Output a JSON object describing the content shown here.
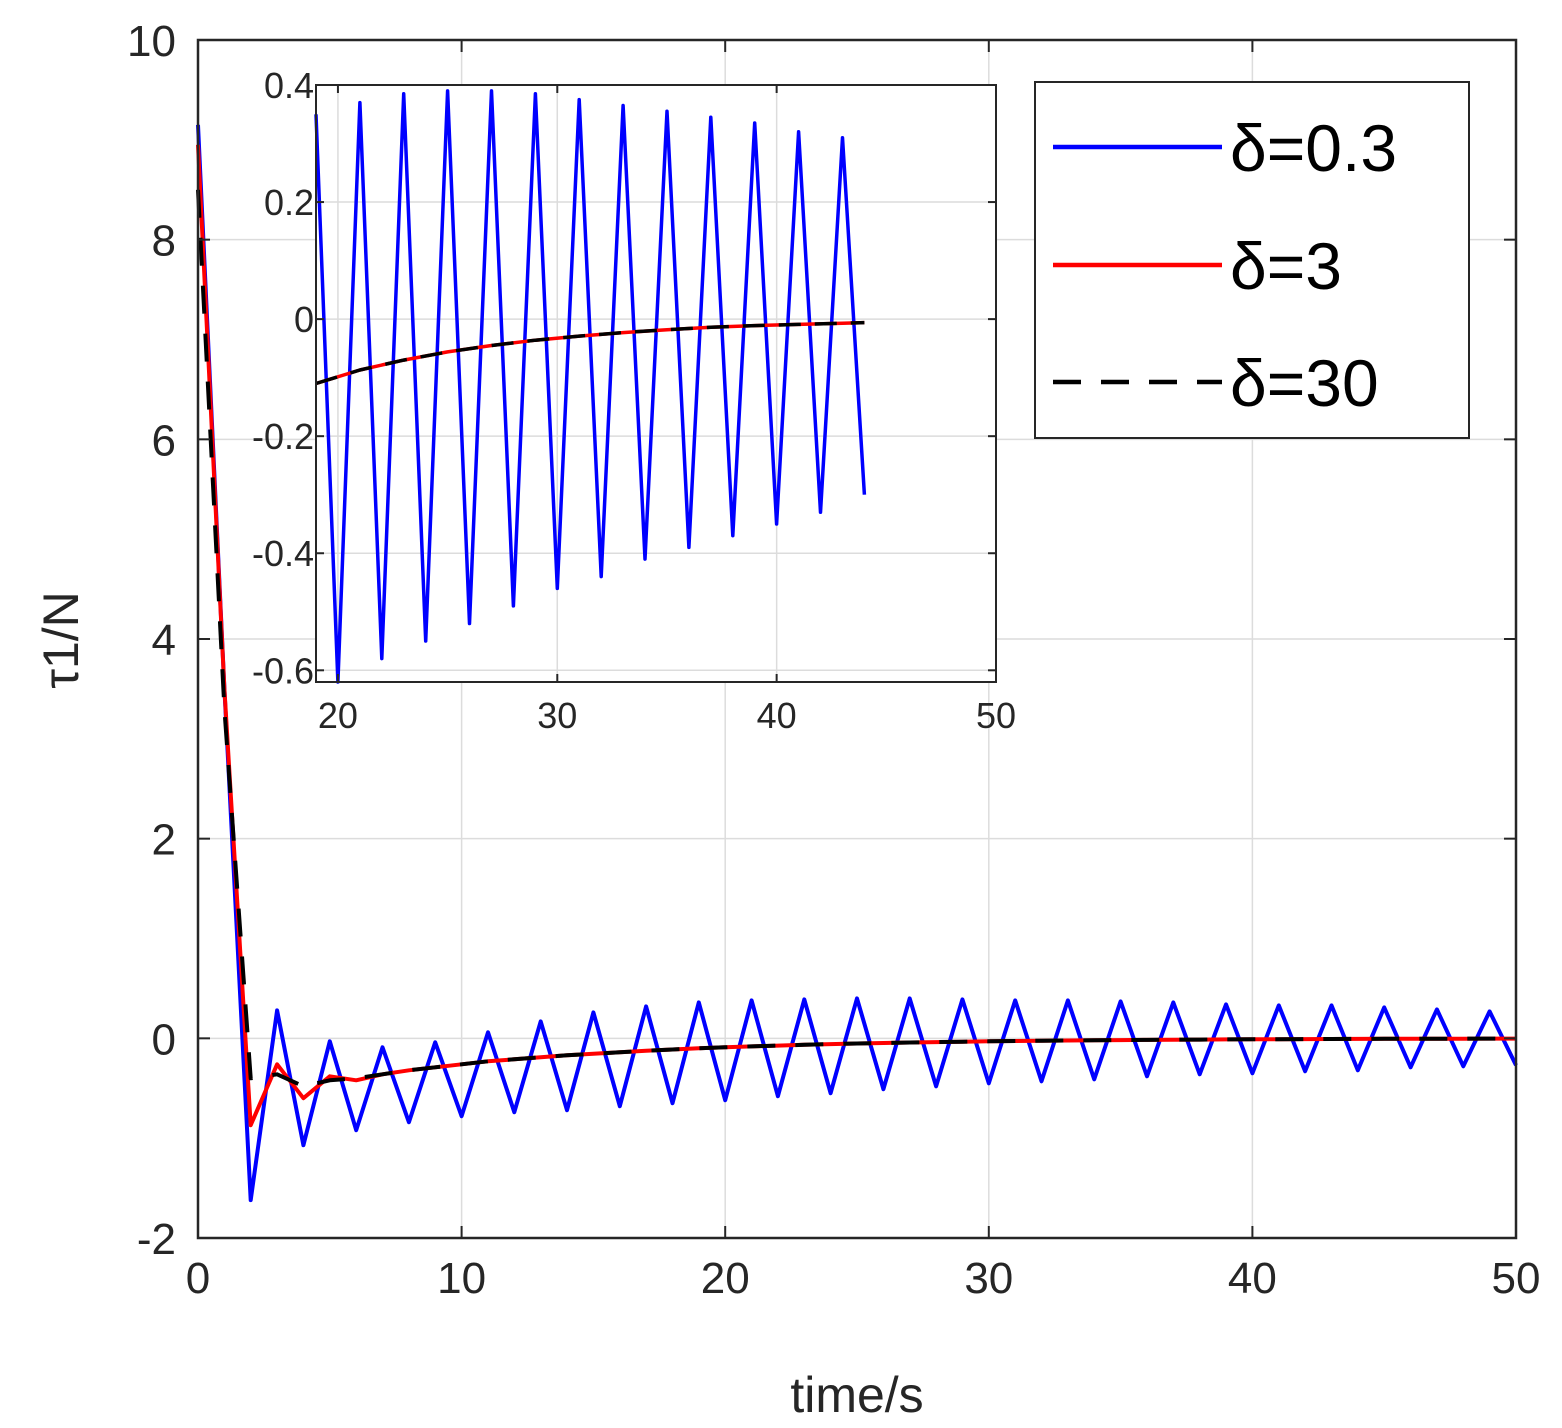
{
  "chart_data": [
    {
      "id": "main",
      "type": "line",
      "title": "",
      "xlabel": "time/s",
      "ylabel": "τ1/N",
      "xlim": [
        0,
        50
      ],
      "ylim": [
        -2,
        10
      ],
      "xticks": [
        0,
        10,
        20,
        30,
        40,
        50
      ],
      "yticks": [
        -2,
        0,
        2,
        4,
        6,
        8,
        10
      ],
      "xtick_labels": [
        "0",
        "10",
        "20",
        "30",
        "40",
        "50"
      ],
      "ytick_labels": [
        "-2",
        "0",
        "2",
        "4",
        "6",
        "8",
        "10"
      ],
      "grid": true,
      "legend_position": "top-right",
      "series": [
        {
          "name": "δ=0.3",
          "color": "#0000ff",
          "style": "solid",
          "x": [
            0,
            1,
            2,
            3,
            4,
            5,
            6,
            7,
            8,
            9,
            10,
            11,
            12,
            13,
            14,
            15,
            16,
            17,
            18,
            19,
            20,
            21,
            22,
            23,
            24,
            25,
            26,
            27,
            28,
            29,
            30,
            31,
            32,
            33,
            34,
            35,
            36,
            37,
            38,
            39,
            40,
            41,
            42,
            43,
            44,
            45,
            46,
            47,
            48,
            49,
            50
          ],
          "y": [
            9.15,
            3.5,
            -1.62,
            0.28,
            -1.07,
            -0.03,
            -0.92,
            -0.09,
            -0.84,
            -0.04,
            -0.78,
            0.06,
            -0.74,
            0.17,
            -0.72,
            0.26,
            -0.68,
            0.32,
            -0.65,
            0.36,
            -0.62,
            0.38,
            -0.58,
            0.39,
            -0.55,
            0.4,
            -0.51,
            0.4,
            -0.48,
            0.39,
            -0.45,
            0.38,
            -0.43,
            0.38,
            -0.41,
            0.37,
            -0.38,
            0.36,
            -0.36,
            0.34,
            -0.35,
            0.33,
            -0.33,
            0.33,
            -0.32,
            0.31,
            -0.29,
            0.29,
            -0.28,
            0.27,
            -0.27
          ]
        },
        {
          "name": "δ=3",
          "color": "#ff0000",
          "style": "solid",
          "x": [
            0,
            1,
            2,
            3,
            4,
            5,
            6,
            7,
            8,
            9,
            10,
            11,
            12,
            13,
            14,
            15,
            16,
            17,
            18,
            19,
            20,
            21,
            22,
            23,
            24,
            25,
            26,
            27,
            28,
            29,
            30,
            31,
            32,
            33,
            34,
            35,
            36,
            37,
            38,
            39,
            40,
            41,
            42,
            43,
            44,
            45,
            46,
            47,
            48,
            49,
            50
          ],
          "y": [
            8.95,
            3.5,
            -0.87,
            -0.26,
            -0.6,
            -0.38,
            -0.42,
            -0.36,
            -0.32,
            -0.29,
            -0.26,
            -0.23,
            -0.21,
            -0.19,
            -0.17,
            -0.155,
            -0.14,
            -0.125,
            -0.112,
            -0.1,
            -0.09,
            -0.081,
            -0.073,
            -0.065,
            -0.058,
            -0.052,
            -0.047,
            -0.042,
            -0.038,
            -0.034,
            -0.03,
            -0.027,
            -0.024,
            -0.022,
            -0.02,
            -0.018,
            -0.016,
            -0.014,
            -0.013,
            -0.011,
            -0.01,
            -0.009,
            -0.008,
            -0.007,
            -0.006,
            -0.005,
            -0.005,
            -0.004,
            -0.004,
            -0.003,
            -0.003
          ]
        },
        {
          "name": "δ=30",
          "color": "#000000",
          "style": "dashed",
          "x": [
            0,
            1,
            2,
            3,
            4,
            5,
            6,
            7,
            8,
            9,
            10,
            11,
            12,
            13,
            14,
            15,
            16,
            17,
            18,
            19,
            20,
            21,
            22,
            23,
            24,
            25,
            26,
            27,
            28,
            29,
            30,
            31,
            32,
            33,
            34,
            35,
            36,
            37,
            38,
            39,
            40,
            41,
            42,
            43,
            44,
            45,
            46,
            47,
            48,
            49,
            50
          ],
          "y": [
            8.5,
            3.3,
            -0.4,
            -0.36,
            -0.48,
            -0.42,
            -0.4,
            -0.36,
            -0.32,
            -0.29,
            -0.26,
            -0.23,
            -0.21,
            -0.19,
            -0.17,
            -0.155,
            -0.14,
            -0.125,
            -0.112,
            -0.1,
            -0.09,
            -0.081,
            -0.073,
            -0.065,
            -0.058,
            -0.052,
            -0.047,
            -0.042,
            -0.038,
            -0.034,
            -0.03,
            -0.027,
            -0.024,
            -0.022,
            -0.02,
            -0.018,
            -0.016,
            -0.014,
            -0.013,
            -0.011,
            -0.01,
            -0.009,
            -0.008,
            -0.007,
            -0.006,
            -0.005,
            -0.005,
            -0.004,
            -0.004,
            -0.003,
            -0.003
          ]
        }
      ]
    },
    {
      "id": "inset",
      "type": "line",
      "title": "",
      "xlabel": "",
      "ylabel": "",
      "xlim": [
        19,
        50
      ],
      "ylim": [
        -0.62,
        0.4
      ],
      "xticks": [
        20,
        30,
        40,
        50
      ],
      "yticks": [
        -0.6,
        -0.4,
        -0.2,
        0,
        0.2,
        0.4
      ],
      "xtick_labels": [
        "20",
        "30",
        "40",
        "50"
      ],
      "ytick_labels": [
        "-0.6",
        "-0.4",
        "-0.2",
        "0",
        "0.2",
        "0.4"
      ],
      "grid": true,
      "series": [
        {
          "name": "δ=0.3",
          "color": "#0000ff",
          "style": "solid",
          "x": [
            19,
            20,
            21,
            22,
            23,
            24,
            25,
            26,
            27,
            28,
            29,
            30,
            31,
            32,
            33,
            34,
            35,
            36,
            37,
            38,
            39,
            40,
            41,
            42,
            43,
            44
          ],
          "y": [
            0.35,
            -0.62,
            0.37,
            -0.58,
            0.385,
            -0.55,
            0.39,
            -0.52,
            0.39,
            -0.49,
            0.385,
            -0.46,
            0.375,
            -0.44,
            0.365,
            -0.41,
            0.355,
            -0.39,
            0.345,
            -0.37,
            0.335,
            -0.35,
            0.32,
            -0.33,
            0.31,
            -0.3
          ]
        },
        {
          "name": "δ=3",
          "color": "#ff0000",
          "style": "solid",
          "x": [
            19,
            21,
            23,
            25,
            27,
            29,
            31,
            33,
            35,
            37,
            39,
            41,
            43,
            44
          ],
          "y": [
            -0.11,
            -0.087,
            -0.07,
            -0.056,
            -0.045,
            -0.036,
            -0.029,
            -0.023,
            -0.018,
            -0.014,
            -0.011,
            -0.009,
            -0.007,
            -0.006
          ]
        },
        {
          "name": "δ=30",
          "color": "#000000",
          "style": "dashed",
          "x": [
            19,
            21,
            23,
            25,
            27,
            29,
            31,
            33,
            35,
            37,
            39,
            41,
            43,
            44
          ],
          "y": [
            -0.11,
            -0.087,
            -0.07,
            -0.056,
            -0.045,
            -0.036,
            -0.029,
            -0.023,
            -0.018,
            -0.014,
            -0.011,
            -0.009,
            -0.007,
            -0.006
          ]
        }
      ]
    }
  ],
  "legend": {
    "entries": [
      {
        "label": "δ=0.3",
        "color": "#0000ff",
        "style": "solid"
      },
      {
        "label": "δ=3",
        "color": "#ff0000",
        "style": "solid"
      },
      {
        "label": "δ=30",
        "color": "#000000",
        "style": "dashed"
      }
    ]
  }
}
